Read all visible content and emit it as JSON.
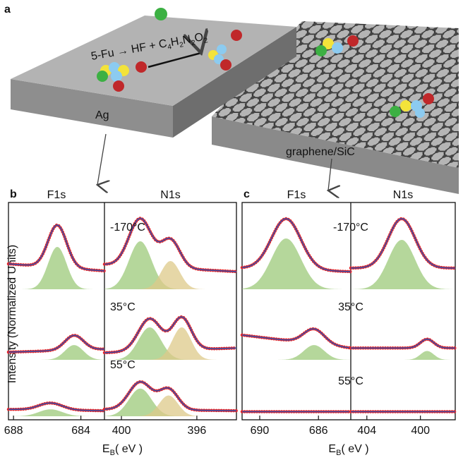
{
  "figure_label": "a",
  "reaction": {
    "lhs": "5-Fu → HF + ",
    "formula": [
      {
        "el": "C",
        "n": "4"
      },
      {
        "el": "H",
        "n": "2"
      },
      {
        "el": "N",
        "n": "2"
      },
      {
        "el": "O",
        "n": "2"
      }
    ]
  },
  "substrates": [
    "Ag",
    "graphene/SiC"
  ],
  "ylabel": "Intensity (Normalized Units)",
  "chart_data": [
    {
      "type": "spectra",
      "panel": "b",
      "xlabel": {
        "symbol": "E",
        "sub": "B",
        "unit": "( eV )"
      },
      "ylim": [
        0,
        1.1
      ],
      "envelope_color": "#3b4fa8",
      "data_color": "#e3262a",
      "columns": [
        {
          "title": "F1s",
          "xlim": [
            688.3,
            682.6
          ],
          "xticks": [
            688,
            684
          ]
        },
        {
          "title": "N1s",
          "xlim": [
            400.9,
            393.9
          ],
          "xticks": [
            400,
            396
          ]
        }
      ],
      "rows": [
        {
          "label": "-170°C",
          "spectra": [
            {
              "background": [
                0.36,
                0.26
              ],
              "components": [
                {
                  "center": 685.4,
                  "height": 0.6,
                  "width": 0.55,
                  "color": "#9cc97a"
                }
              ]
            },
            {
              "background": [
                0.35,
                0.25
              ],
              "components": [
                {
                  "center": 399.0,
                  "height": 0.68,
                  "width": 0.6,
                  "color": "#9cc97a"
                },
                {
                  "center": 397.4,
                  "height": 0.4,
                  "width": 0.5,
                  "color": "#ddc98a"
                }
              ]
            }
          ]
        },
        {
          "label": "35°C",
          "spectra": [
            {
              "background": [
                0.13,
                0.18
              ],
              "components": [
                {
                  "center": 684.4,
                  "height": 0.25,
                  "width": 0.55,
                  "color": "#9cc97a"
                }
              ]
            },
            {
              "background": [
                0.12,
                0.2
              ],
              "components": [
                {
                  "center": 398.5,
                  "height": 0.55,
                  "width": 0.6,
                  "color": "#9cc97a"
                },
                {
                  "center": 396.8,
                  "height": 0.55,
                  "width": 0.5,
                  "color": "#ddc98a"
                }
              ]
            }
          ]
        },
        {
          "label": "55°C",
          "spectra": [
            {
              "background": [
                0.15,
                0.12
              ],
              "components": [
                {
                  "center": 685.8,
                  "height": 0.15,
                  "width": 0.7,
                  "color": "#9cc97a"
                }
              ]
            },
            {
              "background": [
                0.15,
                0.12
              ],
              "components": [
                {
                  "center": 399.0,
                  "height": 0.6,
                  "width": 0.6,
                  "color": "#9cc97a"
                },
                {
                  "center": 397.5,
                  "height": 0.45,
                  "width": 0.5,
                  "color": "#ddc98a"
                }
              ]
            }
          ]
        }
      ]
    },
    {
      "type": "spectra",
      "panel": "c",
      "xlabel": {
        "symbol": "E",
        "sub": "B",
        "unit": "( eV )"
      },
      "ylim": [
        0,
        1.1
      ],
      "envelope_color": "#3b4fa8",
      "data_color": "#e3262a",
      "columns": [
        {
          "title": "F1s",
          "xlim": [
            691.2,
            683.8
          ],
          "xticks": [
            690,
            686
          ]
        },
        {
          "title": "N1s",
          "xlim": [
            405.2,
            397.4
          ],
          "xticks": [
            404,
            400
          ]
        }
      ],
      "rows": [
        {
          "label": "-170°C",
          "spectra": [
            {
              "background": [
                0.3,
                0.25
              ],
              "components": [
                {
                  "center": 688.2,
                  "height": 0.72,
                  "width": 1.0,
                  "color": "#9cc97a"
                }
              ]
            },
            {
              "background": [
                0.3,
                0.3
              ],
              "components": [
                {
                  "center": 401.4,
                  "height": 0.7,
                  "width": 1.0,
                  "color": "#9cc97a"
                }
              ]
            }
          ]
        },
        {
          "label": "35°C",
          "spectra": [
            {
              "background": [
                0.42,
                0.2
              ],
              "components": [
                {
                  "center": 686.3,
                  "height": 0.25,
                  "width": 0.7,
                  "color": "#9cc97a"
                }
              ]
            },
            {
              "background": [
                0.2,
                0.2
              ],
              "components": [
                {
                  "center": 399.5,
                  "height": 0.15,
                  "width": 0.5,
                  "color": "#9cc97a"
                }
              ]
            }
          ]
        },
        {
          "label": "55°C",
          "spectra": [
            {
              "background": [
                0.1,
                0.1
              ],
              "components": []
            },
            {
              "background": [
                0.1,
                0.1
              ],
              "components": []
            }
          ]
        }
      ]
    }
  ]
}
